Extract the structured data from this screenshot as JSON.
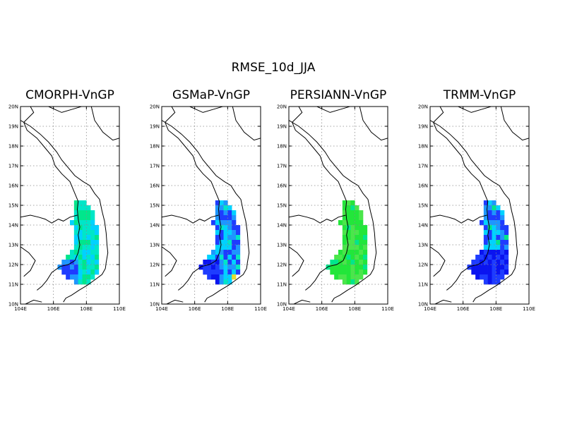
{
  "figure": {
    "title": "RMSE_10d_JJA"
  },
  "panels": [
    {
      "title": "CMORPH-VnGP",
      "scheme": "cmorph"
    },
    {
      "title": "GSMaP-VnGP",
      "scheme": "gsmap"
    },
    {
      "title": "PERSIANN-VnGP",
      "scheme": "persiann"
    },
    {
      "title": "TRMM-VnGP",
      "scheme": "trmm"
    }
  ],
  "map": {
    "lon_range": [
      104,
      110
    ],
    "lat_range": [
      10,
      20
    ],
    "lon_ticks": [
      "104E",
      "106E",
      "108E",
      "110E"
    ],
    "lat_ticks": [
      "10N",
      "11N",
      "12N",
      "13N",
      "14N",
      "15N",
      "16N",
      "17N",
      "18N",
      "19N",
      "20N"
    ],
    "grid": "dotted, every 2 deg lon and 1 deg lat",
    "colors": {
      "blue": "#1e3cff",
      "dark_blue": "#0a14f0",
      "sky": "#1e96ff",
      "cyan": "#00d2ff",
      "aqua": "#00e6c8",
      "teal_green": "#00e68c",
      "green": "#22e63a",
      "light_green": "#4be64b",
      "yellow": "#e6dc32",
      "red": "#f01e1e"
    }
  }
}
